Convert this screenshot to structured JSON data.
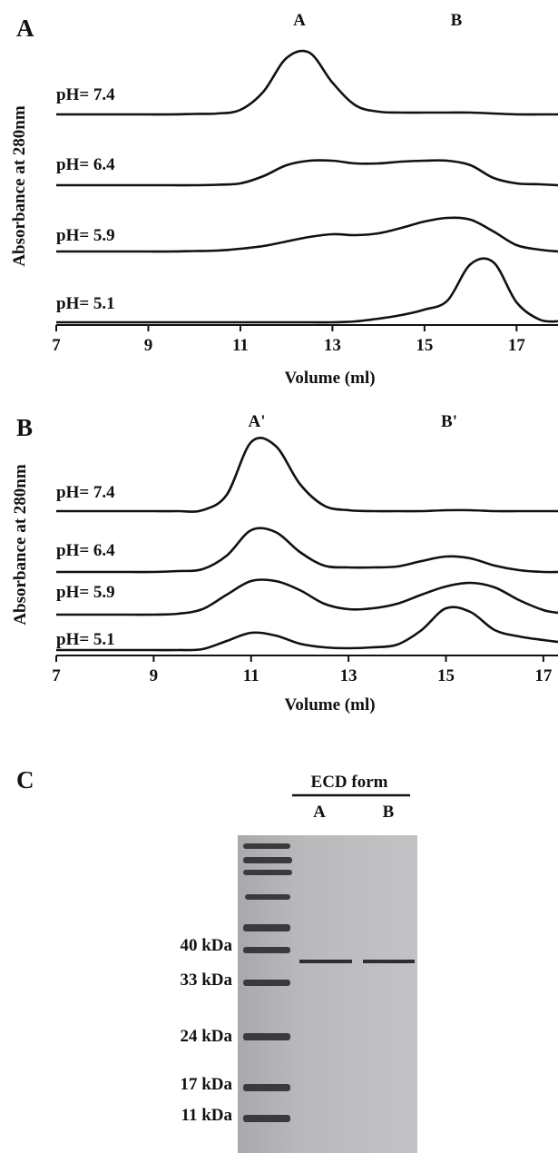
{
  "chart_data": [
    {
      "type": "line",
      "panel_label": "A",
      "annotations": [
        "A",
        "B"
      ],
      "xlabel": "Volume (ml)",
      "ylabel": "Absorbance at 280nm",
      "xlim": [
        7,
        17.9
      ],
      "xticks": [
        7,
        9,
        11,
        13,
        15,
        17
      ],
      "ylim": [
        0,
        100
      ],
      "x": [
        7,
        7.5,
        8,
        8.5,
        9,
        9.5,
        10,
        10.5,
        11,
        11.5,
        12,
        12.5,
        13,
        13.5,
        14,
        14.5,
        15,
        15.5,
        16,
        16.5,
        17,
        17.5,
        17.9
      ],
      "series": [
        {
          "name": "pH= 7.4",
          "color": "#111111",
          "values": [
            0,
            0,
            0,
            0,
            0,
            0,
            0.5,
            1,
            5,
            25,
            62,
            68,
            35,
            10,
            3,
            2,
            2,
            2,
            2,
            1,
            0,
            0,
            0
          ]
        },
        {
          "name": "pH= 6.4",
          "color": "#111111",
          "values": [
            0,
            0,
            0,
            0,
            0,
            0,
            0,
            0.5,
            2,
            10,
            22,
            27,
            27,
            24,
            24,
            26,
            27,
            27,
            22,
            8,
            2,
            1,
            0
          ]
        },
        {
          "name": "pH= 5.9",
          "color": "#111111",
          "values": [
            0,
            0,
            0,
            0,
            0,
            0,
            0.5,
            1,
            3,
            6,
            11,
            16,
            19,
            18,
            20,
            26,
            33,
            37,
            35,
            22,
            7,
            2,
            0
          ]
        },
        {
          "name": "pH= 5.1",
          "color": "#111111",
          "values": [
            0,
            0,
            0,
            0,
            0,
            0,
            0,
            0,
            0,
            0,
            0,
            0,
            0,
            1,
            4,
            8,
            14,
            24,
            64,
            66,
            22,
            3,
            1
          ]
        }
      ]
    },
    {
      "type": "line",
      "panel_label": "B",
      "annotations": [
        "A'",
        "B'"
      ],
      "xlabel": "Volume (ml)",
      "ylabel": "Absorbance at 280nm",
      "xlim": [
        7,
        17.3
      ],
      "xticks": [
        7,
        9,
        11,
        13,
        15,
        17
      ],
      "ylim": [
        0,
        100
      ],
      "x": [
        7,
        7.5,
        8,
        8.5,
        9,
        9.5,
        10,
        10.5,
        11,
        11.5,
        12,
        12.5,
        13,
        13.5,
        14,
        14.5,
        15,
        15.5,
        16,
        16.5,
        17,
        17.3
      ],
      "series": [
        {
          "name": "pH= 7.4",
          "color": "#111111",
          "values": [
            0,
            0,
            0,
            0,
            0,
            0,
            1,
            18,
            76,
            72,
            30,
            6,
            1,
            0,
            0,
            0,
            1,
            1,
            0,
            0,
            0,
            0
          ]
        },
        {
          "name": "pH= 6.4",
          "color": "#111111",
          "values": [
            0,
            0,
            0,
            0,
            0,
            1,
            3,
            18,
            46,
            44,
            22,
            7,
            5,
            5,
            6,
            12,
            17,
            15,
            7,
            2,
            0,
            0
          ]
        },
        {
          "name": "pH= 5.9",
          "color": "#111111",
          "values": [
            0,
            0,
            0,
            0,
            0,
            1,
            6,
            22,
            37,
            37,
            27,
            12,
            6,
            7,
            12,
            22,
            31,
            35,
            30,
            16,
            5,
            2
          ]
        },
        {
          "name": "pH= 5.1",
          "color": "#111111",
          "values": [
            0,
            0,
            0,
            0,
            0,
            0,
            1,
            10,
            19,
            16,
            7,
            3,
            2,
            3,
            6,
            22,
            46,
            42,
            22,
            15,
            11,
            9
          ]
        }
      ]
    }
  ],
  "gel": {
    "panel_label": "C",
    "header": "ECD form",
    "lanes": [
      "A",
      "B"
    ],
    "markers": [
      "40 kDa",
      "33 kDa",
      "24 kDa",
      "17 kDa",
      "11 kDa"
    ]
  }
}
